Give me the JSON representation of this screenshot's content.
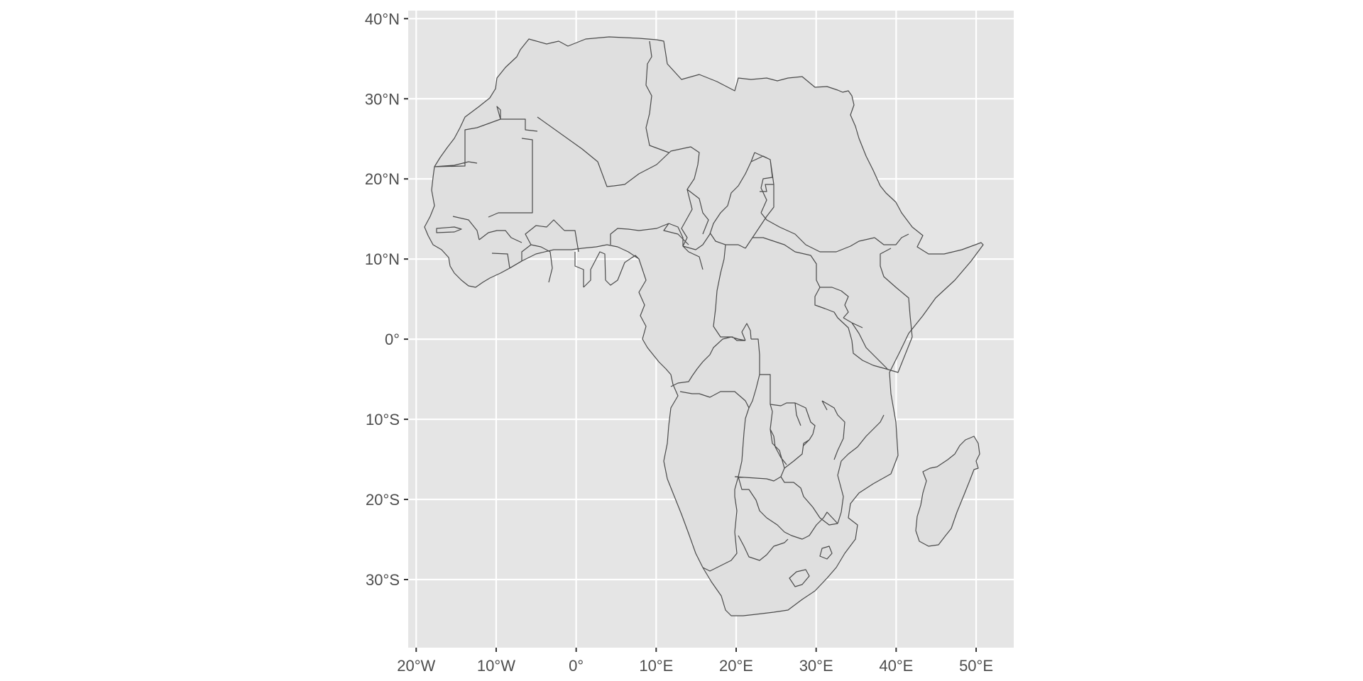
{
  "map": {
    "type": "choropleth-outline",
    "region": "Africa",
    "x_ticks": [
      {
        "value": -20,
        "label": "20°W"
      },
      {
        "value": -10,
        "label": "10°W"
      },
      {
        "value": 0,
        "label": "0°"
      },
      {
        "value": 10,
        "label": "10°E"
      },
      {
        "value": 20,
        "label": "20°E"
      },
      {
        "value": 30,
        "label": "30°E"
      },
      {
        "value": 40,
        "label": "40°E"
      },
      {
        "value": 50,
        "label": "50°E"
      }
    ],
    "y_ticks": [
      {
        "value": 40,
        "label": "40°N"
      },
      {
        "value": 30,
        "label": "30°N"
      },
      {
        "value": 20,
        "label": "20°N"
      },
      {
        "value": 10,
        "label": "10°N"
      },
      {
        "value": 0,
        "label": "0°"
      },
      {
        "value": -10,
        "label": "10°S"
      },
      {
        "value": -20,
        "label": "20°S"
      },
      {
        "value": -30,
        "label": "30°S"
      }
    ],
    "xlim": [
      -21,
      54.7
    ],
    "ylim": [
      -38.5,
      41
    ],
    "grid": true,
    "colors": {
      "panel": "#e5e5e5",
      "grid": "#ffffff",
      "land_fill": "#dfdfdf",
      "border": "#4a4a4a",
      "axis_text": "#4d4d4d"
    }
  }
}
